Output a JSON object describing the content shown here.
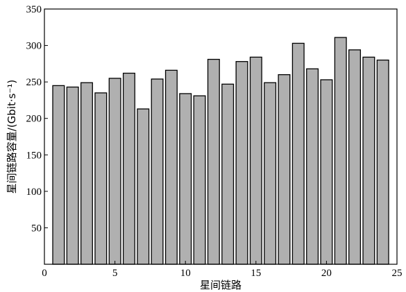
{
  "chart_data": {
    "type": "bar",
    "xlabel": "星间链路",
    "ylabel": "星间链路容量/(Gbit·s⁻¹)",
    "xlim": [
      0,
      25
    ],
    "ylim": [
      0,
      350
    ],
    "x_ticks": [
      0,
      5,
      10,
      15,
      20,
      25
    ],
    "y_ticks": [
      50,
      100,
      150,
      200,
      250,
      300,
      350
    ],
    "grid": false,
    "series": [
      {
        "x": [
          1,
          2,
          3,
          4,
          5,
          6,
          7,
          8,
          9,
          10,
          11,
          12,
          13,
          14,
          15,
          16,
          17,
          18,
          19,
          20,
          21,
          22,
          23,
          24
        ],
        "values": [
          245,
          243,
          249,
          235,
          255,
          262,
          213,
          254,
          266,
          234,
          231,
          281,
          247,
          278,
          284,
          249,
          260,
          303,
          268,
          253,
          311,
          294,
          284,
          280
        ]
      }
    ]
  }
}
